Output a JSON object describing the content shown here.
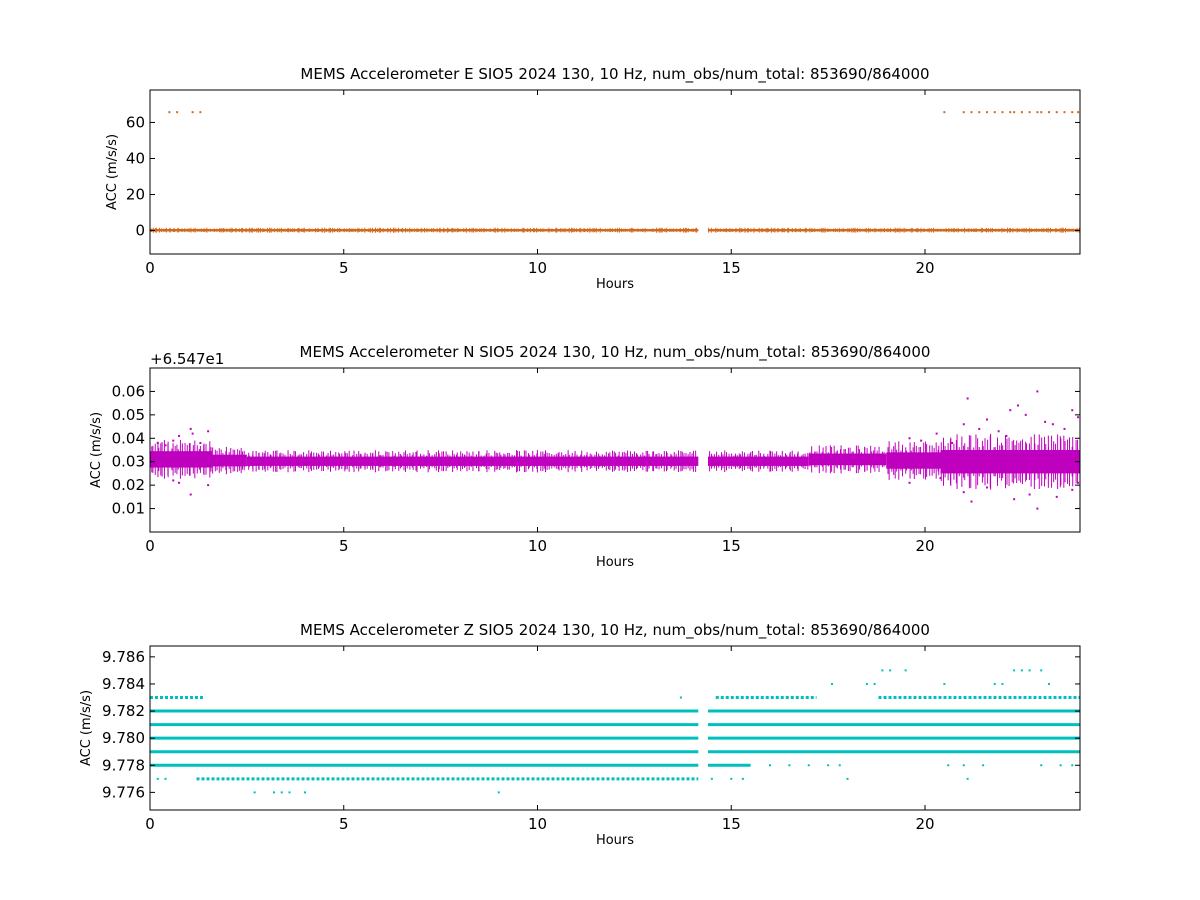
{
  "chart_data": [
    {
      "type": "scatter",
      "title": "MEMS Accelerometer E SIO5 2024 130, 10 Hz, num_obs/num_total: 853690/864000",
      "xlabel": "Hours",
      "ylabel": "ACC (m/s/s)",
      "xlim": [
        0,
        24
      ],
      "ylim": [
        -13,
        78
      ],
      "xticks": [
        0,
        5,
        10,
        15,
        20
      ],
      "yticks": [
        0,
        20,
        40,
        60
      ],
      "ytick_labels": [
        "0",
        "20",
        "40",
        "60"
      ],
      "y_offset_label": "",
      "color": "#d2691e",
      "grid": false,
      "series": [
        {
          "bands": [
            {
              "y": 0.2,
              "x_start": 0.0,
              "x_end": 14.15,
              "spread": 0.6
            },
            {
              "y": 0.2,
              "x_start": 14.4,
              "x_end": 24.0,
              "spread": 0.6
            }
          ],
          "sparse_points": [
            [
              0.5,
              65.7
            ],
            [
              0.7,
              65.7
            ],
            [
              1.1,
              65.7
            ],
            [
              1.3,
              65.7
            ],
            [
              20.5,
              65.7
            ],
            [
              21.0,
              65.7
            ],
            [
              21.2,
              65.7
            ],
            [
              21.4,
              65.7
            ],
            [
              21.6,
              65.7
            ],
            [
              21.8,
              65.7
            ],
            [
              22.0,
              65.7
            ],
            [
              22.2,
              65.7
            ],
            [
              22.3,
              65.7
            ],
            [
              22.5,
              65.7
            ],
            [
              22.7,
              65.7
            ],
            [
              22.9,
              65.7
            ],
            [
              23.0,
              65.7
            ],
            [
              23.2,
              65.7
            ],
            [
              23.4,
              65.7
            ],
            [
              23.6,
              65.7
            ],
            [
              23.8,
              65.7
            ],
            [
              23.95,
              65.7
            ]
          ]
        }
      ]
    },
    {
      "type": "scatter",
      "title": "MEMS Accelerometer N SIO5 2024 130, 10 Hz, num_obs/num_total: 853690/864000",
      "xlabel": "Hours",
      "ylabel": "ACC (m/s/s)",
      "xlim": [
        0,
        24
      ],
      "ylim": [
        0.0,
        0.07
      ],
      "xticks": [
        0,
        5,
        10,
        15,
        20
      ],
      "yticks": [
        0.01,
        0.02,
        0.03,
        0.04,
        0.05,
        0.06
      ],
      "ytick_labels": [
        "0.01",
        "0.02",
        "0.03",
        "0.04",
        "0.05",
        "0.06"
      ],
      "y_offset_label": "+6.547e1",
      "color": "#bf00bf",
      "grid": false,
      "series": [
        {
          "bands": [
            {
              "y": 0.031,
              "x_start": 0.0,
              "x_end": 1.6,
              "spread": 0.0035
            },
            {
              "y": 0.0305,
              "x_start": 1.6,
              "x_end": 2.5,
              "spread": 0.0025
            },
            {
              "y": 0.0302,
              "x_start": 2.5,
              "x_end": 14.15,
              "spread": 0.002
            },
            {
              "y": 0.0302,
              "x_start": 14.4,
              "x_end": 17.0,
              "spread": 0.002
            },
            {
              "y": 0.031,
              "x_start": 17.0,
              "x_end": 19.0,
              "spread": 0.0025
            },
            {
              "y": 0.0305,
              "x_start": 19.0,
              "x_end": 20.4,
              "spread": 0.0035
            },
            {
              "y": 0.03,
              "x_start": 20.4,
              "x_end": 24.0,
              "spread": 0.005
            }
          ],
          "sparse_points": [
            [
              0.6,
              0.039
            ],
            [
              0.6,
              0.022
            ],
            [
              0.75,
              0.041
            ],
            [
              0.75,
              0.021
            ],
            [
              1.05,
              0.044
            ],
            [
              1.05,
              0.016
            ],
            [
              1.1,
              0.042
            ],
            [
              1.3,
              0.038
            ],
            [
              1.5,
              0.043
            ],
            [
              1.5,
              0.02
            ],
            [
              0.2,
              0.038
            ],
            [
              0.4,
              0.037
            ],
            [
              19.6,
              0.04
            ],
            [
              19.6,
              0.021
            ],
            [
              19.9,
              0.039
            ],
            [
              20.3,
              0.042
            ],
            [
              20.4,
              0.023
            ],
            [
              20.7,
              0.038
            ],
            [
              21.0,
              0.046
            ],
            [
              21.0,
              0.017
            ],
            [
              21.1,
              0.057
            ],
            [
              21.2,
              0.013
            ],
            [
              21.4,
              0.044
            ],
            [
              21.6,
              0.048
            ],
            [
              21.6,
              0.019
            ],
            [
              21.9,
              0.043
            ],
            [
              22.1,
              0.041
            ],
            [
              22.2,
              0.052
            ],
            [
              22.3,
              0.014
            ],
            [
              22.4,
              0.054
            ],
            [
              22.6,
              0.05
            ],
            [
              22.7,
              0.016
            ],
            [
              22.9,
              0.06
            ],
            [
              22.9,
              0.01
            ],
            [
              23.1,
              0.047
            ],
            [
              23.3,
              0.046
            ],
            [
              23.4,
              0.015
            ],
            [
              23.6,
              0.044
            ],
            [
              23.8,
              0.052
            ],
            [
              23.8,
              0.018
            ],
            [
              23.95,
              0.049
            ],
            [
              23.95,
              0.021
            ]
          ]
        }
      ]
    },
    {
      "type": "scatter",
      "title": "MEMS Accelerometer Z SIO5 2024 130, 10 Hz, num_obs/num_total: 853690/864000",
      "xlabel": "Hours",
      "ylabel": "ACC (m/s/s)",
      "xlim": [
        0,
        24
      ],
      "ylim": [
        9.7747,
        9.7868
      ],
      "xticks": [
        0,
        5,
        10,
        15,
        20
      ],
      "yticks": [
        9.776,
        9.778,
        9.78,
        9.782,
        9.784,
        9.786
      ],
      "ytick_labels": [
        "9.776",
        "9.778",
        "9.780",
        "9.782",
        "9.784",
        "9.786"
      ],
      "y_offset_label": "",
      "color": "#00bfbf",
      "grid": false,
      "series": [
        {
          "levels": [
            {
              "y": 9.782,
              "segments": [
                [
                  0.0,
                  14.15
                ],
                [
                  14.4,
                  24.0
                ]
              ]
            },
            {
              "y": 9.781,
              "segments": [
                [
                  0.0,
                  14.15
                ],
                [
                  14.4,
                  24.0
                ]
              ]
            },
            {
              "y": 9.78,
              "segments": [
                [
                  0.0,
                  14.15
                ],
                [
                  14.4,
                  24.0
                ]
              ]
            },
            {
              "y": 9.779,
              "segments": [
                [
                  0.0,
                  14.15
                ],
                [
                  14.4,
                  24.0
                ]
              ]
            },
            {
              "y": 9.778,
              "segments": [
                [
                  0.0,
                  14.15
                ],
                [
                  14.4,
                  15.5
                ]
              ]
            },
            {
              "y": 9.777,
              "segments": [
                [
                  1.2,
                  14.15
                ]
              ]
            },
            {
              "y": 9.783,
              "segments": [
                [
                  0.0,
                  1.4
                ],
                [
                  14.6,
                  17.2
                ],
                [
                  18.8,
                  24.0
                ]
              ]
            }
          ],
          "sparse_points": [
            [
              0.2,
              9.777
            ],
            [
              0.4,
              9.777
            ],
            [
              2.7,
              9.776
            ],
            [
              3.2,
              9.776
            ],
            [
              3.4,
              9.776
            ],
            [
              3.6,
              9.776
            ],
            [
              4.0,
              9.776
            ],
            [
              9.0,
              9.776
            ],
            [
              13.7,
              9.783
            ],
            [
              14.5,
              9.777
            ],
            [
              15.0,
              9.777
            ],
            [
              15.3,
              9.777
            ],
            [
              16.0,
              9.778
            ],
            [
              16.5,
              9.778
            ],
            [
              17.0,
              9.778
            ],
            [
              17.5,
              9.778
            ],
            [
              17.6,
              9.784
            ],
            [
              17.8,
              9.778
            ],
            [
              18.0,
              9.777
            ],
            [
              18.5,
              9.784
            ],
            [
              18.7,
              9.784
            ],
            [
              18.9,
              9.785
            ],
            [
              19.1,
              9.785
            ],
            [
              19.5,
              9.785
            ],
            [
              20.5,
              9.784
            ],
            [
              20.6,
              9.778
            ],
            [
              21.0,
              9.778
            ],
            [
              21.1,
              9.777
            ],
            [
              21.5,
              9.778
            ],
            [
              21.8,
              9.784
            ],
            [
              22.0,
              9.784
            ],
            [
              22.3,
              9.785
            ],
            [
              22.5,
              9.785
            ],
            [
              22.7,
              9.785
            ],
            [
              23.0,
              9.785
            ],
            [
              23.2,
              9.784
            ],
            [
              23.0,
              9.778
            ],
            [
              23.5,
              9.778
            ],
            [
              23.8,
              9.778
            ]
          ]
        }
      ]
    }
  ]
}
